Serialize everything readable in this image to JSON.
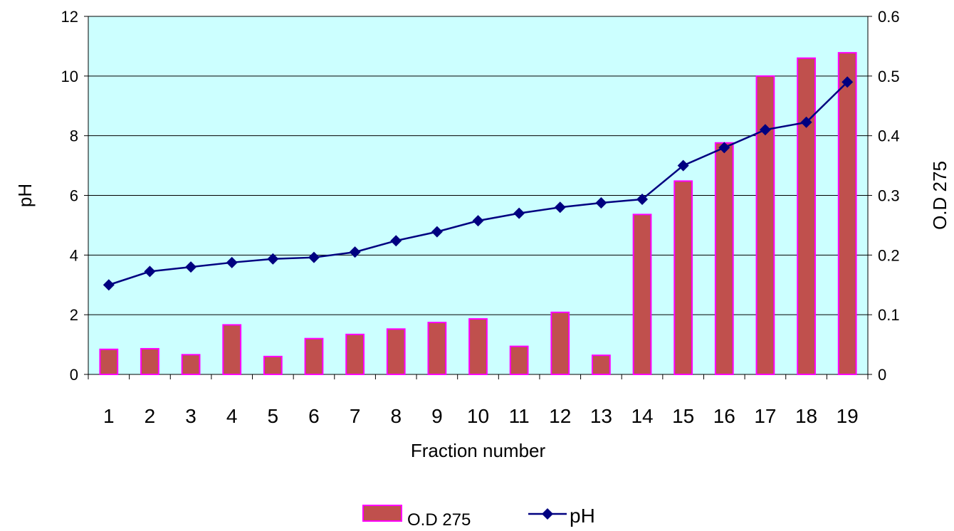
{
  "chart_data": {
    "type": "bar",
    "categories": [
      "1",
      "2",
      "3",
      "4",
      "5",
      "6",
      "7",
      "8",
      "9",
      "10",
      "11",
      "12",
      "13",
      "14",
      "15",
      "16",
      "17",
      "18",
      "19"
    ],
    "series": [
      {
        "name": "O.D 275",
        "type": "bar",
        "axis": "right",
        "color": "#C0504D",
        "edge_color": "#FF00FF",
        "values": [
          0.042,
          0.043,
          0.033,
          0.083,
          0.03,
          0.06,
          0.067,
          0.076,
          0.087,
          0.093,
          0.047,
          0.104,
          0.032,
          0.268,
          0.324,
          0.388,
          0.5,
          0.53,
          0.539
        ]
      },
      {
        "name": "pH",
        "type": "line",
        "axis": "left",
        "color": "#000080",
        "marker": "diamond",
        "values": [
          3.0,
          3.45,
          3.6,
          3.75,
          3.87,
          3.92,
          4.1,
          4.48,
          4.78,
          5.15,
          5.4,
          5.6,
          5.75,
          5.87,
          7.0,
          7.6,
          8.2,
          8.45,
          9.8
        ]
      }
    ],
    "xlabel": "Fraction number",
    "ylabel": "pH",
    "y2label": "O.D 275",
    "ylim": [
      0,
      12
    ],
    "y_ticks": [
      "0",
      "2",
      "4",
      "6",
      "8",
      "10",
      "12"
    ],
    "y2lim": [
      0,
      0.6
    ],
    "y2_ticks": [
      "0",
      "0.1",
      "0.2",
      "0.3",
      "0.4",
      "0.5",
      "0.6"
    ],
    "grid": true,
    "plot_background": "#CCFFFF",
    "legend": {
      "placement": "bottom",
      "entries": [
        "O.D 275",
        "pH"
      ]
    }
  }
}
